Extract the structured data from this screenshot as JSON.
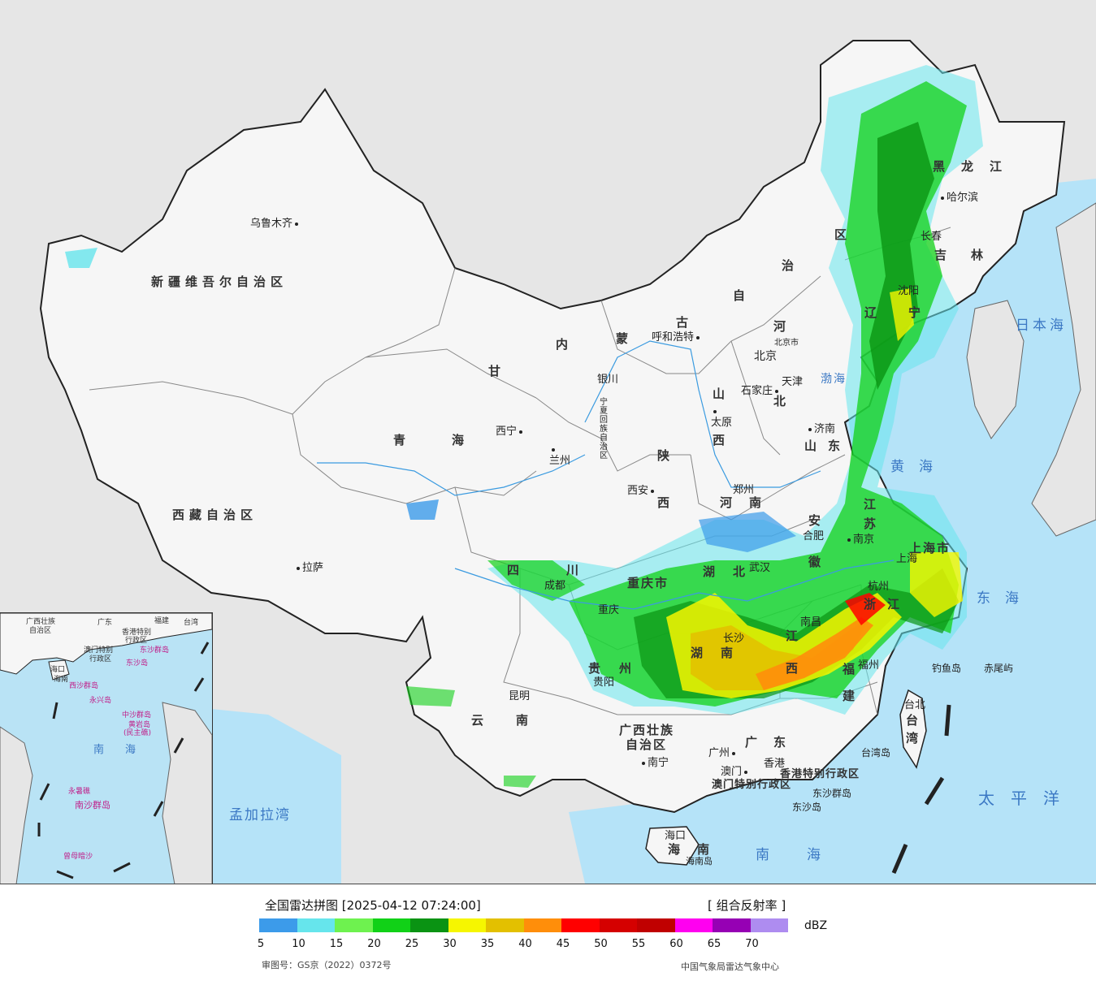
{
  "map": {
    "provinces": [
      {
        "id": "xinjiang",
        "text": "新疆维吾尔自治区"
      },
      {
        "id": "xizang",
        "text": "西藏自治区"
      },
      {
        "id": "qinghai1",
        "text": "青"
      },
      {
        "id": "qinghai2",
        "text": "海"
      },
      {
        "id": "gansu",
        "text": "甘"
      },
      {
        "id": "neimenggu1",
        "text": "内"
      },
      {
        "id": "neimenggu2",
        "text": "蒙"
      },
      {
        "id": "neimenggu3",
        "text": "古"
      },
      {
        "id": "neimenggu4",
        "text": "自"
      },
      {
        "id": "neimenggu5",
        "text": "治"
      },
      {
        "id": "neimenggu6",
        "text": "区"
      },
      {
        "id": "heilongjiang",
        "text": "黑龙江"
      },
      {
        "id": "jilin1",
        "text": "吉"
      },
      {
        "id": "jilin2",
        "text": "林"
      },
      {
        "id": "liaoning1",
        "text": "辽"
      },
      {
        "id": "liaoning2",
        "text": "宁"
      },
      {
        "id": "hebei1",
        "text": "河"
      },
      {
        "id": "hebei2",
        "text": "北"
      },
      {
        "id": "shanxi1",
        "text": "山"
      },
      {
        "id": "shanxi2",
        "text": "西"
      },
      {
        "id": "shandong",
        "text": "山东"
      },
      {
        "id": "shaanxi1",
        "text": "陕"
      },
      {
        "id": "shaanxi2",
        "text": "西"
      },
      {
        "id": "henan1",
        "text": "河"
      },
      {
        "id": "henan2",
        "text": "南"
      },
      {
        "id": "ningxia",
        "text": "宁夏回族自治区"
      },
      {
        "id": "sichuan1",
        "text": "四"
      },
      {
        "id": "sichuan2",
        "text": "川"
      },
      {
        "id": "hubei1",
        "text": "湖"
      },
      {
        "id": "hubei2",
        "text": "北"
      },
      {
        "id": "hunan1",
        "text": "湖"
      },
      {
        "id": "hunan2",
        "text": "南"
      },
      {
        "id": "chongqing",
        "text": "重庆市"
      },
      {
        "id": "guizhou1",
        "text": "贵"
      },
      {
        "id": "guizhou2",
        "text": "州"
      },
      {
        "id": "yunnan",
        "text": "云南"
      },
      {
        "id": "guangxi1",
        "text": "广西壮族"
      },
      {
        "id": "guangxi2",
        "text": "自治区"
      },
      {
        "id": "guangdong",
        "text": "广东"
      },
      {
        "id": "jiangxi1",
        "text": "江"
      },
      {
        "id": "jiangxi2",
        "text": "西"
      },
      {
        "id": "fujian1",
        "text": "福"
      },
      {
        "id": "fujian2",
        "text": "建"
      },
      {
        "id": "zhejiang1",
        "text": "浙"
      },
      {
        "id": "zhejiang2",
        "text": "江"
      },
      {
        "id": "anhui1",
        "text": "安"
      },
      {
        "id": "anhui2",
        "text": "徽"
      },
      {
        "id": "jiangsu1",
        "text": "江"
      },
      {
        "id": "jiangsu2",
        "text": "苏"
      },
      {
        "id": "shanghai",
        "text": "上海市"
      },
      {
        "id": "taiwan1",
        "text": "台"
      },
      {
        "id": "taiwan2",
        "text": "湾"
      },
      {
        "id": "hainan1",
        "text": "海"
      },
      {
        "id": "hainan2",
        "text": "南"
      },
      {
        "id": "hk",
        "text": "香港特别行政区"
      },
      {
        "id": "macao",
        "text": "澳门特别行政区"
      },
      {
        "id": "tianjin",
        "text": "天津"
      },
      {
        "id": "beijing",
        "text": "北京"
      }
    ],
    "cities": [
      {
        "id": "urumqi",
        "text": "乌鲁木齐"
      },
      {
        "id": "lhasa",
        "text": "拉萨"
      },
      {
        "id": "xining",
        "text": "西宁"
      },
      {
        "id": "lanzhou",
        "text": "兰州"
      },
      {
        "id": "yinchuan",
        "text": "银川"
      },
      {
        "id": "hohhot",
        "text": "呼和浩特"
      },
      {
        "id": "harbin",
        "text": "哈尔滨"
      },
      {
        "id": "changchun",
        "text": "长春"
      },
      {
        "id": "shenyang",
        "text": "沈阳"
      },
      {
        "id": "beijing_city",
        "text": "北京市"
      },
      {
        "id": "shijiazhuang",
        "text": "石家庄"
      },
      {
        "id": "taiyuan",
        "text": "太原"
      },
      {
        "id": "jinan",
        "text": "济南"
      },
      {
        "id": "xian",
        "text": "西安"
      },
      {
        "id": "zhengzhou",
        "text": "郑州"
      },
      {
        "id": "hefei",
        "text": "合肥"
      },
      {
        "id": "nanjing",
        "text": "南京"
      },
      {
        "id": "shanghai_city",
        "text": "上海"
      },
      {
        "id": "hangzhou",
        "text": "杭州"
      },
      {
        "id": "wuhan",
        "text": "武汉"
      },
      {
        "id": "chengdu",
        "text": "成都"
      },
      {
        "id": "chongqing_city",
        "text": "重庆"
      },
      {
        "id": "guiyang",
        "text": "贵阳"
      },
      {
        "id": "kunming",
        "text": "昆明"
      },
      {
        "id": "changsha",
        "text": "长沙"
      },
      {
        "id": "nanchang",
        "text": "南昌"
      },
      {
        "id": "fuzhou",
        "text": "福州"
      },
      {
        "id": "taipei",
        "text": "台北"
      },
      {
        "id": "guangzhou",
        "text": "广州"
      },
      {
        "id": "hongkong",
        "text": "香港"
      },
      {
        "id": "macau",
        "text": "澳门"
      },
      {
        "id": "nanning",
        "text": "南宁"
      },
      {
        "id": "haikou",
        "text": "海口"
      }
    ],
    "seas": [
      {
        "id": "bohai",
        "text": "渤海"
      },
      {
        "id": "huanghai",
        "text": "黄海"
      },
      {
        "id": "donghai",
        "text": "东海"
      },
      {
        "id": "nanhai",
        "text": "南海"
      },
      {
        "id": "riben",
        "text": "日本海"
      },
      {
        "id": "taipingyang",
        "text": "太平洋"
      },
      {
        "id": "mengjiala",
        "text": "孟加拉湾"
      }
    ],
    "islands": [
      {
        "id": "diaoyu",
        "text": "钓鱼岛"
      },
      {
        "id": "chiwei",
        "text": "赤尾屿"
      },
      {
        "id": "taiwandao",
        "text": "台湾岛"
      },
      {
        "id": "dongsha",
        "text": "东沙群岛"
      },
      {
        "id": "dongshadao",
        "text": "东沙岛"
      },
      {
        "id": "hainandao",
        "text": "海南岛"
      }
    ],
    "inset": {
      "labels": [
        {
          "id": "i1",
          "text": "广西壮族"
        },
        {
          "id": "i2",
          "text": "自治区"
        },
        {
          "id": "i3",
          "text": "广东"
        },
        {
          "id": "i4",
          "text": "福建"
        },
        {
          "id": "i5",
          "text": "台湾"
        },
        {
          "id": "i6",
          "text": "香港特别"
        },
        {
          "id": "i7",
          "text": "行政区"
        },
        {
          "id": "i8",
          "text": "澳门特别"
        },
        {
          "id": "i9",
          "text": "行政区"
        },
        {
          "id": "i10",
          "text": "东沙群岛"
        },
        {
          "id": "i11",
          "text": "东沙岛"
        },
        {
          "id": "i12",
          "text": "海口"
        },
        {
          "id": "i13",
          "text": "海南"
        },
        {
          "id": "i14",
          "text": "西沙群岛"
        },
        {
          "id": "i15",
          "text": "永兴岛"
        },
        {
          "id": "i16",
          "text": "中沙群岛"
        },
        {
          "id": "i17",
          "text": "黄岩岛"
        },
        {
          "id": "i18",
          "text": "(民主礁)"
        },
        {
          "id": "i19",
          "text": "南海"
        },
        {
          "id": "i20",
          "text": "永暑礁"
        },
        {
          "id": "i21",
          "text": "南沙群岛"
        },
        {
          "id": "i22",
          "text": "曾母暗沙"
        }
      ]
    }
  },
  "legend": {
    "title": "全国雷达拼图 [2025-04-12 07:24:00]",
    "product": "[ 组合反射率 ]",
    "unit": "dBZ",
    "scale": [
      {
        "label": "5",
        "color": "#3c9bea"
      },
      {
        "label": "10",
        "color": "#66e5ec"
      },
      {
        "label": "15",
        "color": "#6ef24f"
      },
      {
        "label": "20",
        "color": "#11d117"
      },
      {
        "label": "25",
        "color": "#0a9313"
      },
      {
        "label": "30",
        "color": "#f6f600"
      },
      {
        "label": "35",
        "color": "#e3c000"
      },
      {
        "label": "40",
        "color": "#ff8e0a"
      },
      {
        "label": "45",
        "color": "#ff0000"
      },
      {
        "label": "50",
        "color": "#d50000"
      },
      {
        "label": "55",
        "color": "#c00000"
      },
      {
        "label": "60",
        "color": "#ff00f0"
      },
      {
        "label": "65",
        "color": "#9600b4"
      },
      {
        "label": "70",
        "color": "#ae8cf0"
      }
    ],
    "approval": "审图号：GS京（2022）0372号",
    "source": "中国气象局雷达气象中心"
  }
}
